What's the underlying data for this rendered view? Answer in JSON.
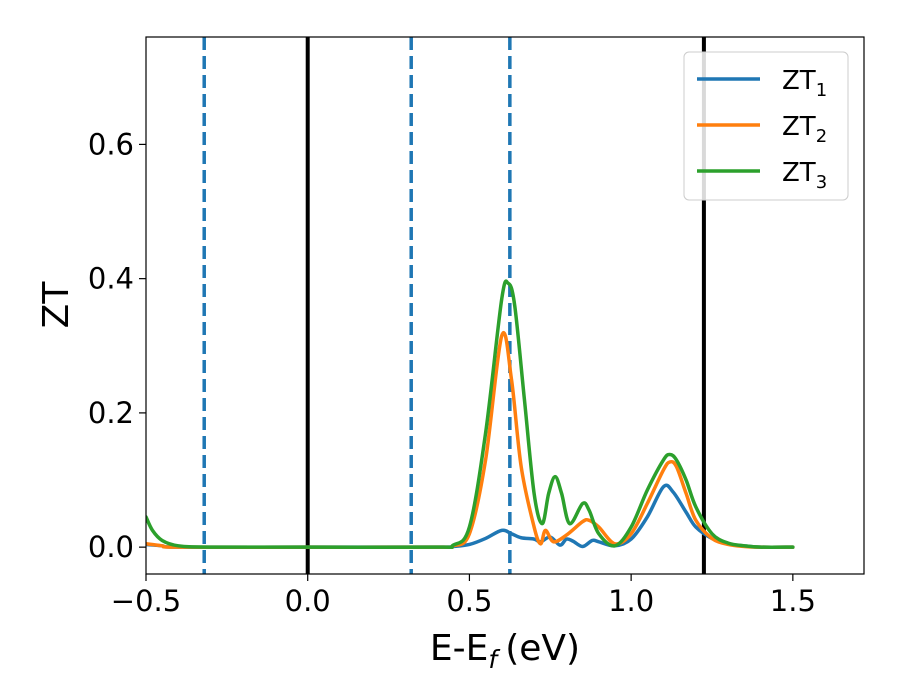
{
  "chart_data": {
    "type": "line",
    "xlabel": "E-E",
    "xlabel_sub": "f",
    "xlabel_unit": "(eV)",
    "ylabel": "ZT",
    "xlim": [
      -0.5,
      1.72
    ],
    "ylim": [
      -0.04,
      0.76
    ],
    "x_ticks": [
      -0.5,
      0.0,
      0.5,
      1.0,
      1.5
    ],
    "x_tick_labels": [
      "−0.5",
      "0.0",
      "0.5",
      "1.0",
      "1.5"
    ],
    "y_ticks": [
      0.0,
      0.2,
      0.4,
      0.6
    ],
    "y_tick_labels": [
      "0.0",
      "0.2",
      "0.4",
      "0.6"
    ],
    "grid": false,
    "legend_position": "top-right",
    "vertical_lines": [
      {
        "x": -0.32,
        "style": "dashed",
        "color": "#1f77b4"
      },
      {
        "x": 0.0,
        "style": "solid",
        "color": "#000000"
      },
      {
        "x": 0.32,
        "style": "dashed",
        "color": "#1f77b4"
      },
      {
        "x": 0.625,
        "style": "dashed",
        "color": "#1f77b4"
      },
      {
        "x": 1.225,
        "style": "solid",
        "color": "#000000"
      }
    ],
    "series": [
      {
        "name": "ZT",
        "sub": "1",
        "color": "#1f77b4",
        "points": [
          [
            -0.5,
            0.004
          ],
          [
            -0.45,
            0.002
          ],
          [
            -0.4,
            0.0
          ],
          [
            0.0,
            0.0
          ],
          [
            0.4,
            0.0
          ],
          [
            0.45,
            0.001
          ],
          [
            0.5,
            0.004
          ],
          [
            0.55,
            0.013
          ],
          [
            0.6,
            0.025
          ],
          [
            0.63,
            0.02
          ],
          [
            0.66,
            0.014
          ],
          [
            0.7,
            0.012
          ],
          [
            0.72,
            0.008
          ],
          [
            0.75,
            0.015
          ],
          [
            0.78,
            0.003
          ],
          [
            0.8,
            0.012
          ],
          [
            0.82,
            0.009
          ],
          [
            0.85,
            0.001
          ],
          [
            0.88,
            0.01
          ],
          [
            0.9,
            0.008
          ],
          [
            0.95,
            0.002
          ],
          [
            1.0,
            0.012
          ],
          [
            1.05,
            0.045
          ],
          [
            1.1,
            0.09
          ],
          [
            1.13,
            0.082
          ],
          [
            1.17,
            0.052
          ],
          [
            1.2,
            0.03
          ],
          [
            1.25,
            0.013
          ],
          [
            1.3,
            0.005
          ],
          [
            1.35,
            0.002
          ],
          [
            1.4,
            0.0
          ],
          [
            1.5,
            0.0
          ]
        ]
      },
      {
        "name": "ZT",
        "sub": "2",
        "color": "#ff7f0e",
        "points": [
          [
            -0.5,
            0.005
          ],
          [
            -0.45,
            0.002
          ],
          [
            -0.4,
            0.0
          ],
          [
            0.0,
            0.0
          ],
          [
            0.4,
            0.0
          ],
          [
            0.45,
            0.002
          ],
          [
            0.5,
            0.02
          ],
          [
            0.55,
            0.13
          ],
          [
            0.6,
            0.315
          ],
          [
            0.63,
            0.25
          ],
          [
            0.66,
            0.12
          ],
          [
            0.7,
            0.03
          ],
          [
            0.72,
            0.005
          ],
          [
            0.735,
            0.025
          ],
          [
            0.76,
            0.008
          ],
          [
            0.8,
            0.018
          ],
          [
            0.85,
            0.038
          ],
          [
            0.87,
            0.04
          ],
          [
            0.9,
            0.03
          ],
          [
            0.95,
            0.005
          ],
          [
            1.0,
            0.02
          ],
          [
            1.05,
            0.065
          ],
          [
            1.1,
            0.115
          ],
          [
            1.12,
            0.127
          ],
          [
            1.14,
            0.12
          ],
          [
            1.17,
            0.08
          ],
          [
            1.2,
            0.04
          ],
          [
            1.25,
            0.013
          ],
          [
            1.3,
            0.004
          ],
          [
            1.35,
            0.001
          ],
          [
            1.4,
            0.0
          ],
          [
            1.5,
            0.0
          ]
        ]
      },
      {
        "name": "ZT",
        "sub": "3",
        "color": "#2ca02c",
        "points": [
          [
            -0.5,
            0.045
          ],
          [
            -0.48,
            0.025
          ],
          [
            -0.45,
            0.01
          ],
          [
            -0.4,
            0.002
          ],
          [
            -0.3,
            0.0
          ],
          [
            0.0,
            0.0
          ],
          [
            0.4,
            0.0
          ],
          [
            0.45,
            0.003
          ],
          [
            0.5,
            0.03
          ],
          [
            0.55,
            0.17
          ],
          [
            0.6,
            0.37
          ],
          [
            0.62,
            0.393
          ],
          [
            0.64,
            0.36
          ],
          [
            0.67,
            0.22
          ],
          [
            0.7,
            0.08
          ],
          [
            0.725,
            0.035
          ],
          [
            0.745,
            0.08
          ],
          [
            0.765,
            0.105
          ],
          [
            0.785,
            0.08
          ],
          [
            0.81,
            0.035
          ],
          [
            0.85,
            0.065
          ],
          [
            0.87,
            0.055
          ],
          [
            0.9,
            0.02
          ],
          [
            0.95,
            0.002
          ],
          [
            1.0,
            0.03
          ],
          [
            1.05,
            0.085
          ],
          [
            1.1,
            0.13
          ],
          [
            1.12,
            0.138
          ],
          [
            1.14,
            0.13
          ],
          [
            1.17,
            0.1
          ],
          [
            1.2,
            0.06
          ],
          [
            1.25,
            0.02
          ],
          [
            1.3,
            0.006
          ],
          [
            1.35,
            0.002
          ],
          [
            1.4,
            0.0
          ],
          [
            1.5,
            0.0
          ]
        ]
      }
    ]
  }
}
